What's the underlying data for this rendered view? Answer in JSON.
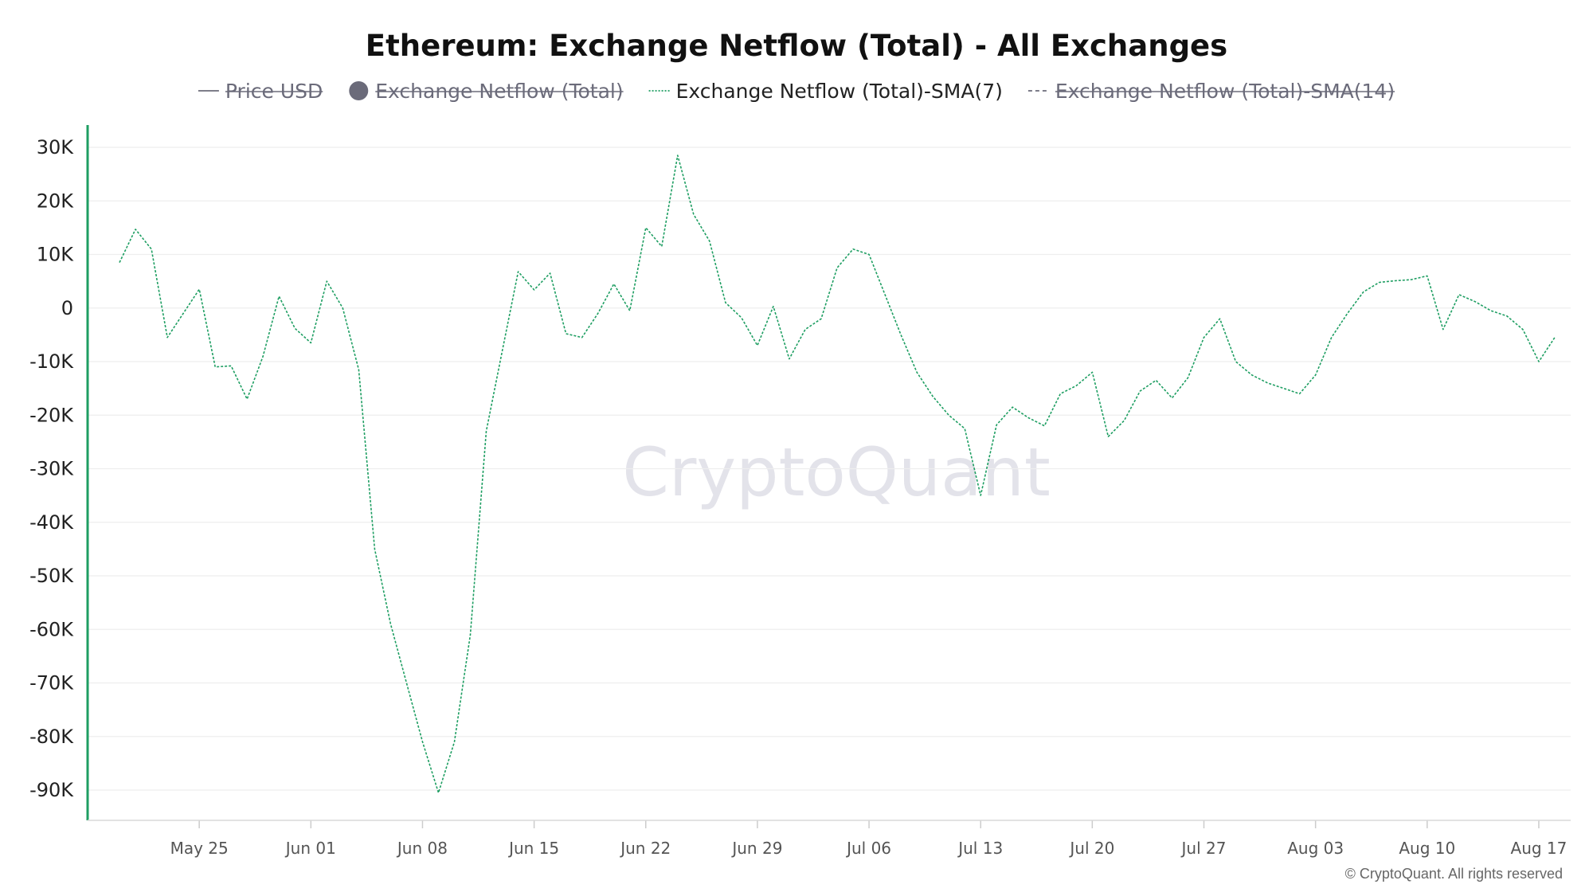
{
  "chart_data": {
    "type": "line",
    "title": "Ethereum: Exchange Netflow (Total) - All Exchanges",
    "legend": [
      {
        "name": "Price USD",
        "enabled": false,
        "marker": "line"
      },
      {
        "name": "Exchange Netflow (Total)",
        "enabled": false,
        "marker": "circle"
      },
      {
        "name": "Exchange Netflow (Total)-SMA(7)",
        "enabled": true,
        "marker": "dotted-line"
      },
      {
        "name": "Exchange Netflow (Total)-SMA(14)",
        "enabled": false,
        "marker": "dashed-line"
      }
    ],
    "legend_position": "top-center",
    "ylim": [
      -95000,
      30000
    ],
    "y_ticks": [
      {
        "value": 30000,
        "label": "30K"
      },
      {
        "value": 20000,
        "label": "20K"
      },
      {
        "value": 10000,
        "label": "10K"
      },
      {
        "value": 0,
        "label": "0"
      },
      {
        "value": -10000,
        "label": "-10K"
      },
      {
        "value": -20000,
        "label": "-20K"
      },
      {
        "value": -30000,
        "label": "-30K"
      },
      {
        "value": -40000,
        "label": "-40K"
      },
      {
        "value": -50000,
        "label": "-50K"
      },
      {
        "value": -60000,
        "label": "-60K"
      },
      {
        "value": -70000,
        "label": "-70K"
      },
      {
        "value": -80000,
        "label": "-80K"
      },
      {
        "value": -90000,
        "label": "-90K"
      }
    ],
    "x_range": [
      "2025-05-18",
      "2025-08-19"
    ],
    "x_ticks": [
      {
        "date": "2025-05-25",
        "label": "May 25"
      },
      {
        "date": "2025-06-01",
        "label": "Jun 01"
      },
      {
        "date": "2025-06-08",
        "label": "Jun 08"
      },
      {
        "date": "2025-06-15",
        "label": "Jun 15"
      },
      {
        "date": "2025-06-22",
        "label": "Jun 22"
      },
      {
        "date": "2025-06-29",
        "label": "Jun 29"
      },
      {
        "date": "2025-07-06",
        "label": "Jul 06"
      },
      {
        "date": "2025-07-13",
        "label": "Jul 13"
      },
      {
        "date": "2025-07-20",
        "label": "Jul 20"
      },
      {
        "date": "2025-07-27",
        "label": "Jul 27"
      },
      {
        "date": "2025-08-03",
        "label": "Aug 03"
      },
      {
        "date": "2025-08-10",
        "label": "Aug 10"
      },
      {
        "date": "2025-08-17",
        "label": "Aug 17"
      }
    ],
    "grid": true,
    "series": [
      {
        "name": "Exchange Netflow (Total)-SMA(7)",
        "color": "#1e9e62",
        "style": "dotted",
        "points": [
          [
            "2025-05-20",
            8500
          ],
          [
            "2025-05-21",
            14700
          ],
          [
            "2025-05-22",
            11000
          ],
          [
            "2025-05-23",
            -5500
          ],
          [
            "2025-05-24",
            -1000
          ],
          [
            "2025-05-25",
            3500
          ],
          [
            "2025-05-26",
            -11000
          ],
          [
            "2025-05-27",
            -10800
          ],
          [
            "2025-05-28",
            -17000
          ],
          [
            "2025-05-29",
            -9000
          ],
          [
            "2025-05-30",
            2200
          ],
          [
            "2025-05-31",
            -3800
          ],
          [
            "2025-06-01",
            -6500
          ],
          [
            "2025-06-02",
            5000
          ],
          [
            "2025-06-03",
            0
          ],
          [
            "2025-06-04",
            -11500
          ],
          [
            "2025-06-05",
            -45000
          ],
          [
            "2025-06-06",
            -59000
          ],
          [
            "2025-06-07",
            -70000
          ],
          [
            "2025-06-08",
            -81000
          ],
          [
            "2025-06-09",
            -90500
          ],
          [
            "2025-06-10",
            -81000
          ],
          [
            "2025-06-11",
            -61000
          ],
          [
            "2025-06-12",
            -23000
          ],
          [
            "2025-06-13",
            -8000
          ],
          [
            "2025-06-14",
            6800
          ],
          [
            "2025-06-15",
            3400
          ],
          [
            "2025-06-16",
            6500
          ],
          [
            "2025-06-17",
            -4800
          ],
          [
            "2025-06-18",
            -5500
          ],
          [
            "2025-06-19",
            -1000
          ],
          [
            "2025-06-20",
            4500
          ],
          [
            "2025-06-21",
            -500
          ],
          [
            "2025-06-22",
            15000
          ],
          [
            "2025-06-23",
            11500
          ],
          [
            "2025-06-24",
            28500
          ],
          [
            "2025-06-25",
            17500
          ],
          [
            "2025-06-26",
            12500
          ],
          [
            "2025-06-27",
            1000
          ],
          [
            "2025-06-28",
            -1800
          ],
          [
            "2025-06-29",
            -7000
          ],
          [
            "2025-06-30",
            300
          ],
          [
            "2025-07-01",
            -9500
          ],
          [
            "2025-07-02",
            -4000
          ],
          [
            "2025-07-03",
            -2000
          ],
          [
            "2025-07-04",
            7500
          ],
          [
            "2025-07-05",
            11000
          ],
          [
            "2025-07-06",
            10000
          ],
          [
            "2025-07-07",
            2500
          ],
          [
            "2025-07-08",
            -5000
          ],
          [
            "2025-07-09",
            -12000
          ],
          [
            "2025-07-10",
            -16500
          ],
          [
            "2025-07-11",
            -20000
          ],
          [
            "2025-07-12",
            -22500
          ],
          [
            "2025-07-13",
            -35000
          ],
          [
            "2025-07-14",
            -21800
          ],
          [
            "2025-07-15",
            -18500
          ],
          [
            "2025-07-16",
            -20500
          ],
          [
            "2025-07-17",
            -22000
          ],
          [
            "2025-07-18",
            -16000
          ],
          [
            "2025-07-19",
            -14500
          ],
          [
            "2025-07-20",
            -12000
          ],
          [
            "2025-07-21",
            -24000
          ],
          [
            "2025-07-22",
            -21000
          ],
          [
            "2025-07-23",
            -15500
          ],
          [
            "2025-07-24",
            -13500
          ],
          [
            "2025-07-25",
            -16800
          ],
          [
            "2025-07-26",
            -13000
          ],
          [
            "2025-07-27",
            -5500
          ],
          [
            "2025-07-28",
            -2000
          ],
          [
            "2025-07-29",
            -10000
          ],
          [
            "2025-07-30",
            -12500
          ],
          [
            "2025-07-31",
            -14000
          ],
          [
            "2025-08-01",
            -15000
          ],
          [
            "2025-08-02",
            -16000
          ],
          [
            "2025-08-03",
            -12500
          ],
          [
            "2025-08-04",
            -5500
          ],
          [
            "2025-08-05",
            -1000
          ],
          [
            "2025-08-06",
            3000
          ],
          [
            "2025-08-07",
            4800
          ],
          [
            "2025-08-08",
            5100
          ],
          [
            "2025-08-09",
            5300
          ],
          [
            "2025-08-10",
            6000
          ],
          [
            "2025-08-11",
            -4000
          ],
          [
            "2025-08-12",
            2500
          ],
          [
            "2025-08-13",
            1200
          ],
          [
            "2025-08-14",
            -500
          ],
          [
            "2025-08-15",
            -1500
          ],
          [
            "2025-08-16",
            -4000
          ],
          [
            "2025-08-17",
            -10000
          ],
          [
            "2025-08-18",
            -5500
          ]
        ]
      }
    ]
  },
  "watermark": "CryptoQuant",
  "copyright": "© CryptoQuant. All rights reserved",
  "colors": {
    "series": "#1e9e62",
    "left_axis": "#1e9e62",
    "legend_off": "#6b6b7a",
    "grid": "#eeeeee"
  }
}
